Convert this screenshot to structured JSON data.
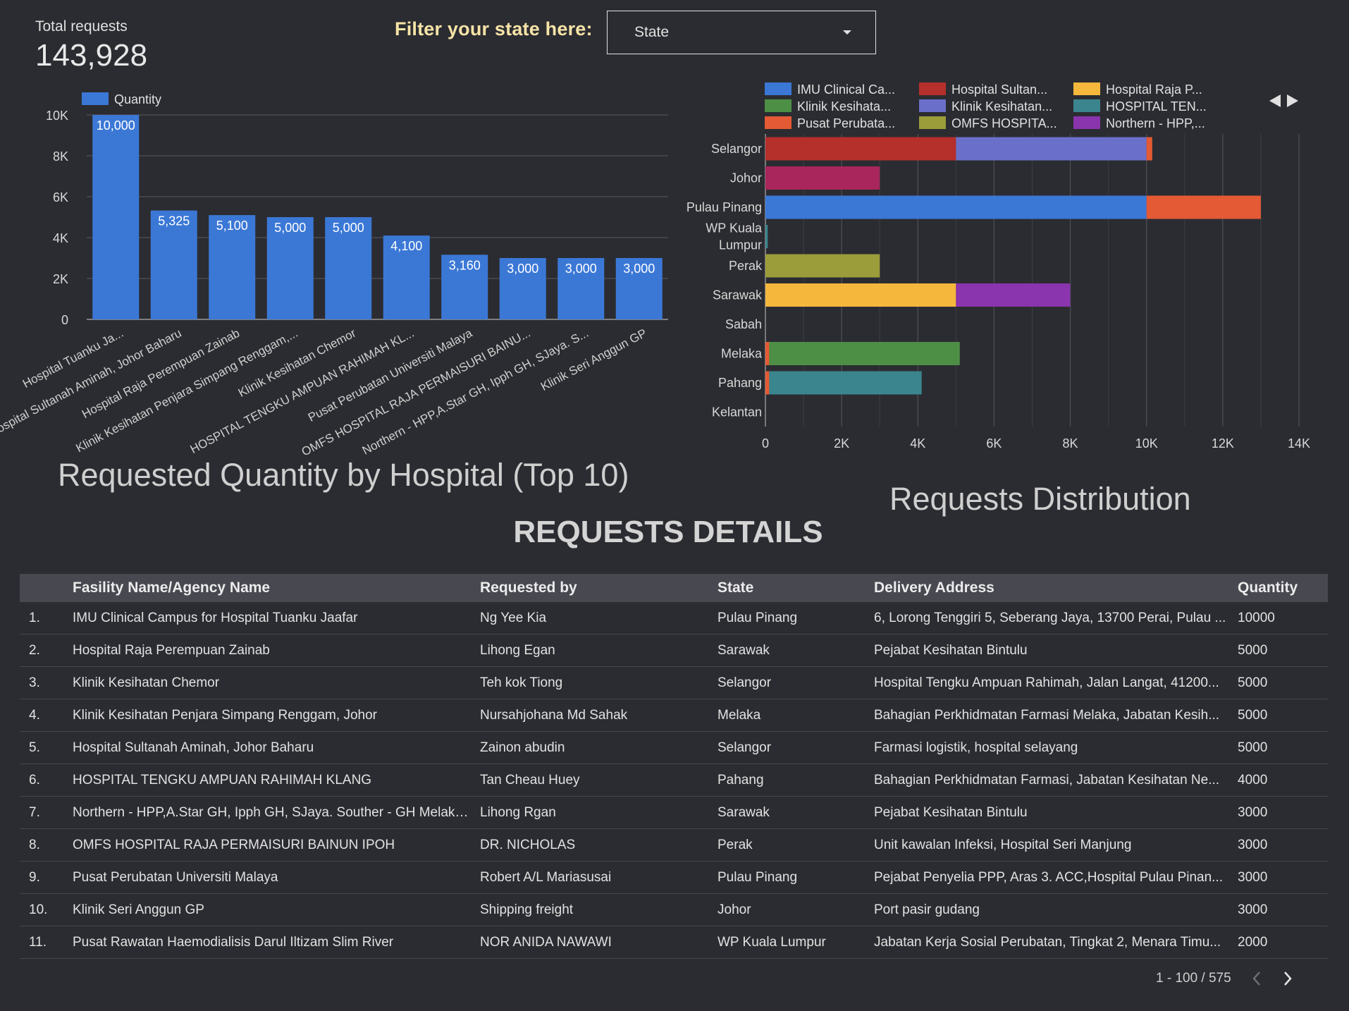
{
  "kpi": {
    "label": "Total requests",
    "value": "143,928"
  },
  "filter": {
    "label": "Filter your state here:",
    "dropdown_value": "State"
  },
  "bar_chart_title": "Requested Quantity by Hospital (Top 10)",
  "hbar_chart_title": "Requests Distribution",
  "details_title": "REQUESTS DETAILS",
  "colors": {
    "background": "#2b2c31",
    "bar_blue": "#3b78d6",
    "header_bg": "#474850",
    "filter_label": "#f6e3a6"
  },
  "chart_data": [
    {
      "type": "bar",
      "title": "Requested Quantity by Hospital (Top 10)",
      "legend": [
        "Quantity"
      ],
      "categories": [
        "Hospital Tuanku Ja...",
        "Hospital Sultanah Aminah, Johor Baharu",
        "Hospital Raja Perempuan Zainab",
        "Klinik Kesihatan Penjara Simpang Renggam,...",
        "Klinik Kesihatan Chemor",
        "HOSPITAL TENGKU AMPUAN RAHIMAH KL...",
        "Pusat Perubatan Universiti Malaya",
        "OMFS HOSPITAL RAJA PERMAISURI BAINU...",
        "Northern - HPP,A.Star GH, Ipph GH, SJaya. S...",
        "Klinik Seri Anggun GP"
      ],
      "values": [
        10000,
        5325,
        5100,
        5000,
        5000,
        4100,
        3160,
        3000,
        3000,
        3000
      ],
      "value_labels": [
        "10,000",
        "5,325",
        "5,100",
        "5,000",
        "5,000",
        "4,100",
        "3,160",
        "3,000",
        "3,000",
        "3,000"
      ],
      "yticks": [
        "0",
        "2K",
        "4K",
        "6K",
        "8K",
        "10K"
      ],
      "ylim": [
        0,
        10000
      ]
    },
    {
      "type": "bar",
      "orientation": "horizontal-stacked",
      "title": "Requests Distribution",
      "legend": [
        {
          "name": "IMU Clinical Ca...",
          "color": "#3b78d6"
        },
        {
          "name": "Hospital Sultan...",
          "color": "#b5302b"
        },
        {
          "name": "Hospital Raja P...",
          "color": "#f5b83d"
        },
        {
          "name": "Klinik Kesihata...",
          "color": "#4e8f46"
        },
        {
          "name": "Klinik Kesihatan...",
          "color": "#6a70c9"
        },
        {
          "name": "HOSPITAL TEN...",
          "color": "#3b858e"
        },
        {
          "name": "Pusat Perubata...",
          "color": "#e35a34"
        },
        {
          "name": "OMFS HOSPITA...",
          "color": "#9b9c3a"
        },
        {
          "name": "Northern - HPP,...",
          "color": "#8a34ad"
        }
      ],
      "categories": [
        "Selangor",
        "Johor",
        "Pulau Pinang",
        "WP Kuala Lumpur",
        "Perak",
        "Sarawak",
        "Sabah",
        "Melaka",
        "Pahang",
        "Kelantan"
      ],
      "stacks": [
        [
          {
            "v": 5000,
            "c": "#b5302b"
          },
          {
            "v": 5000,
            "c": "#6a70c9"
          },
          {
            "v": 150,
            "c": "#e35a34"
          }
        ],
        [
          {
            "v": 3000,
            "c": "#a8265c"
          }
        ],
        [
          {
            "v": 10000,
            "c": "#3b78d6"
          },
          {
            "v": 3000,
            "c": "#e35a34"
          }
        ],
        [
          {
            "v": 60,
            "c": "#3b858e"
          }
        ],
        [
          {
            "v": 3000,
            "c": "#9b9c3a"
          }
        ],
        [
          {
            "v": 5000,
            "c": "#f5b83d"
          },
          {
            "v": 3000,
            "c": "#8a34ad"
          }
        ],
        [],
        [
          {
            "v": 100,
            "c": "#e35a34"
          },
          {
            "v": 5000,
            "c": "#4e8f46"
          }
        ],
        [
          {
            "v": 100,
            "c": "#e35a34"
          },
          {
            "v": 4000,
            "c": "#3b858e"
          }
        ],
        []
      ],
      "xticks": [
        "0",
        "2K",
        "4K",
        "6K",
        "8K",
        "10K",
        "12K",
        "14K"
      ],
      "xlim": [
        0,
        14000
      ]
    }
  ],
  "table": {
    "headers": [
      "Fasility Name/Agency Name",
      "Requested by",
      "State",
      "Delivery Address",
      "Quantity"
    ],
    "rows": [
      {
        "num": "1.",
        "fac": "IMU Clinical Campus for Hospital Tuanku Jaafar",
        "req": "Ng Yee Kia",
        "state": "Pulau Pinang",
        "addr": "6, Lorong Tenggiri 5, Seberang Jaya, 13700 Perai, Pulau ...",
        "qty": "10000"
      },
      {
        "num": "2.",
        "fac": "Hospital Raja Perempuan Zainab",
        "req": "Lihong Egan",
        "state": "Sarawak",
        "addr": "Pejabat Kesihatan Bintulu",
        "qty": "5000"
      },
      {
        "num": "3.",
        "fac": "Klinik Kesihatan Chemor",
        "req": "Teh kok Tiong",
        "state": "Selangor",
        "addr": "Hospital Tengku Ampuan Rahimah, Jalan Langat, 41200...",
        "qty": "5000"
      },
      {
        "num": "4.",
        "fac": "Klinik Kesihatan Penjara Simpang Renggam, Johor",
        "req": "Nursahjohana Md Sahak",
        "state": "Melaka",
        "addr": "Bahagian Perkhidmatan Farmasi Melaka, Jabatan Kesih...",
        "qty": "5000"
      },
      {
        "num": "5.",
        "fac": "Hospital Sultanah Aminah, Johor Baharu",
        "req": "Zainon abudin",
        "state": "Selangor",
        "addr": "Farmasi logistik, hospital selayang",
        "qty": "5000"
      },
      {
        "num": "6.",
        "fac": "HOSPITAL TENGKU AMPUAN RAHIMAH KLANG",
        "req": "Tan Cheau Huey",
        "state": "Pahang",
        "addr": "Bahagian Perkhidmatan Farmasi, Jabatan Kesihatan Ne...",
        "qty": "4000"
      },
      {
        "num": "7.",
        "fac": "Northern - HPP,A.Star GH, Ipph GH, SJaya. Souther - GH Melaka,...",
        "req": "Lihong Rgan",
        "state": "Sarawak",
        "addr": "Pejabat Kesihatan Bintulu",
        "qty": "3000"
      },
      {
        "num": "8.",
        "fac": "OMFS HOSPITAL RAJA PERMAISURI BAINUN IPOH",
        "req": "DR. NICHOLAS",
        "state": "Perak",
        "addr": "Unit kawalan Infeksi, Hospital Seri Manjung",
        "qty": "3000"
      },
      {
        "num": "9.",
        "fac": "Pusat Perubatan Universiti Malaya",
        "req": "Robert A/L Mariasusai",
        "state": "Pulau Pinang",
        "addr": "Pejabat Penyelia PPP, Aras 3. ACC,Hospital Pulau Pinan...",
        "qty": "3000"
      },
      {
        "num": "10.",
        "fac": "Klinik Seri Anggun GP",
        "req": "Shipping freight",
        "state": "Johor",
        "addr": "Port pasir gudang",
        "qty": "3000"
      },
      {
        "num": "11.",
        "fac": "Pusat Rawatan Haemodialisis Darul Iltizam Slim River",
        "req": "NOR ANIDA NAWAWI",
        "state": "WP Kuala Lumpur",
        "addr": "Jabatan Kerja Sosial Perubatan, Tingkat 2, Menara Timu...",
        "qty": "2000"
      }
    ]
  },
  "pager": {
    "text": "1 - 100 / 575"
  }
}
